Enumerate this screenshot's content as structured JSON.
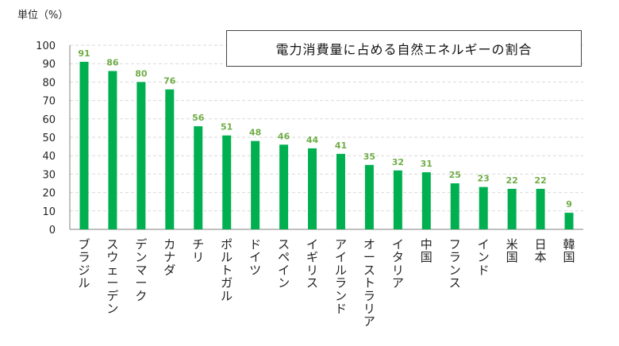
{
  "unit_label": "単位（%）",
  "chart_data": {
    "type": "bar",
    "title": "電力消費量に占める自然エネルギーの割合",
    "ylabel": "",
    "xlabel": "",
    "ylim": [
      0,
      100
    ],
    "yticks": [
      0,
      10,
      20,
      30,
      40,
      50,
      60,
      70,
      80,
      90,
      100
    ],
    "grid": true,
    "categories": [
      "ブラジル",
      "スウェーデン",
      "デンマーク",
      "カナダ",
      "チリ",
      "ポルトガル",
      "ドイツ",
      "スペイン",
      "イギリス",
      "アイルランド",
      "オーストラリア",
      "イタリア",
      "中国",
      "フランス",
      "インド",
      "米国",
      "日本",
      "韓国"
    ],
    "values": [
      91,
      86,
      80,
      76,
      56,
      51,
      48,
      46,
      44,
      41,
      35,
      32,
      31,
      25,
      23,
      22,
      22,
      9
    ],
    "colors": {
      "bar": "#00b050",
      "data_label": "#70ad47",
      "grid": "#d9d9d9",
      "axis": "#808080",
      "text": "#222222"
    }
  }
}
